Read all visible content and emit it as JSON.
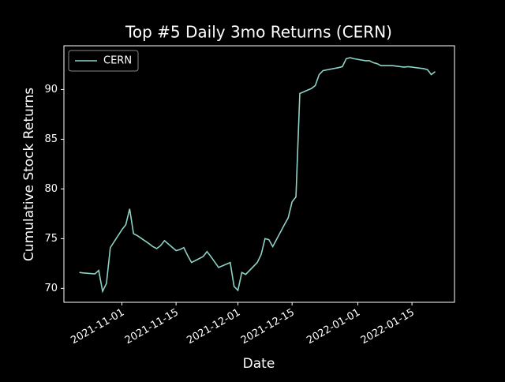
{
  "chart_data": {
    "type": "line",
    "title": "Top #5 Daily 3mo Returns (CERN)",
    "x_label": "Date",
    "y_label": "Cumulative Stock Returns",
    "x": [
      "2021-10-21",
      "2021-10-22",
      "2021-10-25",
      "2021-10-26",
      "2021-10-27",
      "2021-10-28",
      "2021-10-29",
      "2021-11-01",
      "2021-11-02",
      "2021-11-03",
      "2021-11-04",
      "2021-11-05",
      "2021-11-08",
      "2021-11-09",
      "2021-11-10",
      "2021-11-11",
      "2021-11-12",
      "2021-11-15",
      "2021-11-16",
      "2021-11-17",
      "2021-11-18",
      "2021-11-19",
      "2021-11-22",
      "2021-11-23",
      "2021-11-24",
      "2021-11-26",
      "2021-11-29",
      "2021-11-30",
      "2021-12-01",
      "2021-12-02",
      "2021-12-03",
      "2021-12-06",
      "2021-12-07",
      "2021-12-08",
      "2021-12-09",
      "2021-12-10",
      "2021-12-13",
      "2021-12-14",
      "2021-12-15",
      "2021-12-16",
      "2021-12-17",
      "2021-12-20",
      "2021-12-21",
      "2021-12-22",
      "2021-12-23",
      "2021-12-27",
      "2021-12-28",
      "2021-12-29",
      "2021-12-30",
      "2021-12-31",
      "2022-01-03",
      "2022-01-04",
      "2022-01-05",
      "2022-01-06",
      "2022-01-07",
      "2022-01-10",
      "2022-01-11",
      "2022-01-12",
      "2022-01-13",
      "2022-01-14",
      "2022-01-18",
      "2022-01-19",
      "2022-01-20",
      "2022-01-21"
    ],
    "series": [
      {
        "name": "CERN",
        "color": "#8dd3c7",
        "values": [
          71.6,
          71.55,
          71.45,
          71.8,
          69.7,
          70.5,
          74.1,
          75.9,
          76.4,
          78.0,
          75.5,
          75.3,
          74.5,
          74.2,
          74.0,
          74.3,
          74.8,
          73.8,
          73.9,
          74.1,
          73.3,
          72.6,
          73.2,
          73.7,
          73.2,
          72.1,
          72.6,
          70.2,
          69.8,
          71.6,
          71.4,
          72.6,
          73.4,
          75.0,
          74.9,
          74.2,
          76.4,
          77.1,
          78.7,
          79.2,
          89.6,
          90.1,
          90.4,
          91.5,
          91.9,
          92.2,
          92.3,
          93.1,
          93.2,
          93.1,
          92.9,
          92.9,
          92.7,
          92.6,
          92.4,
          92.4,
          92.35,
          92.3,
          92.25,
          92.3,
          92.1,
          92.0,
          91.5,
          91.8
        ]
      }
    ],
    "xlim": [
      "2021-10-17",
      "2022-01-26"
    ],
    "xticks": [
      "2021-11-01",
      "2021-11-15",
      "2021-12-01",
      "2021-12-15",
      "2022-01-01",
      "2022-01-15"
    ],
    "ylim": [
      68.6,
      94.4
    ],
    "yticks": [
      70,
      75,
      80,
      85,
      90
    ],
    "legend": "upper left",
    "grid": false
  }
}
